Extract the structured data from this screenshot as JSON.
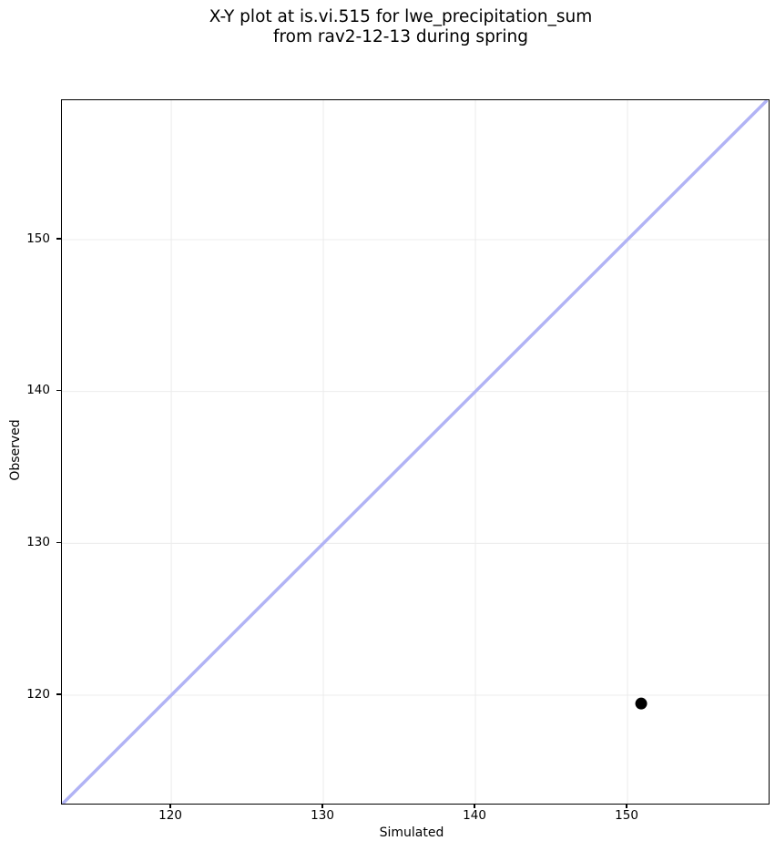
{
  "chart_data": {
    "type": "scatter",
    "title": "X-Y plot at is.vi.515 for lwe_precipitation_sum\nfrom rav2-12-13 during spring",
    "title_lines": [
      "X-Y plot at is.vi.515 for lwe_precipitation_sum",
      "from rav2-12-13 during spring"
    ],
    "xlabel": "Simulated",
    "ylabel": "Observed",
    "xlim": [
      112.81,
      159.28
    ],
    "ylim": [
      112.86,
      159.18
    ],
    "xticks": [
      120,
      130,
      140,
      150
    ],
    "yticks": [
      120,
      130,
      140,
      150
    ],
    "grid": true,
    "legend": "none",
    "series": [
      {
        "name": "simulated-vs-observed",
        "marker": "circle",
        "color": "#000000",
        "points": [
          {
            "x": 150.9,
            "y": 119.45
          }
        ]
      }
    ],
    "identity_line": {
      "description": "1:1 reference line y = x",
      "color": "#b1b3f5",
      "width": 3.5
    },
    "grid_color": "#ececec",
    "background_color": "#ffffff",
    "marker_radius_px": 6.5
  }
}
